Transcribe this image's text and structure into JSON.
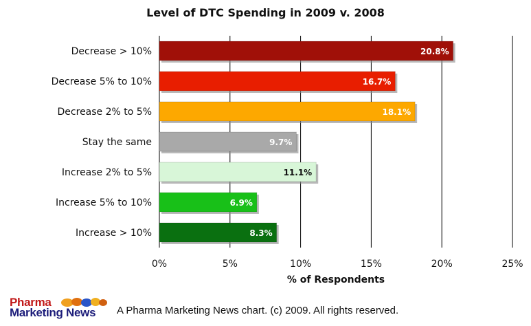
{
  "chart_data": {
    "type": "bar",
    "orientation": "horizontal",
    "title": "Level of DTC Spending in 2009 v. 2008",
    "xlabel": "% of Respondents",
    "ylabel": "",
    "xlim": [
      0,
      25
    ],
    "ticks": [
      0,
      5,
      10,
      15,
      20,
      25
    ],
    "tick_labels": [
      "0%",
      "5%",
      "10%",
      "15%",
      "20%",
      "25%"
    ],
    "grid": "vertical",
    "categories": [
      "Decrease > 10%",
      "Decrease 5% to 10%",
      "Decrease 2% to 5%",
      "Stay the same",
      "Increase 2% to 5%",
      "Increase 5% to 10%",
      "Increase > 10%"
    ],
    "values": [
      20.8,
      16.7,
      18.1,
      9.7,
      11.1,
      6.9,
      8.3
    ],
    "value_labels": [
      "20.8%",
      "16.7%",
      "18.1%",
      "9.7%",
      "11.1%",
      "6.9%",
      "8.3%"
    ],
    "colors": [
      "#a01008",
      "#e81e00",
      "#fda800",
      "#a9a9a9",
      "#d8f6d8",
      "#18c018",
      "#0a7010"
    ],
    "label_colors": [
      "#ffffff",
      "#ffffff",
      "#ffffff",
      "#ffffff",
      "#111111",
      "#ffffff",
      "#ffffff"
    ]
  },
  "footer": {
    "logo_line1": "Pharma",
    "logo_line2": "Marketing News",
    "text": "A Pharma Marketing News chart. (c) 2009. All rights reserved."
  }
}
